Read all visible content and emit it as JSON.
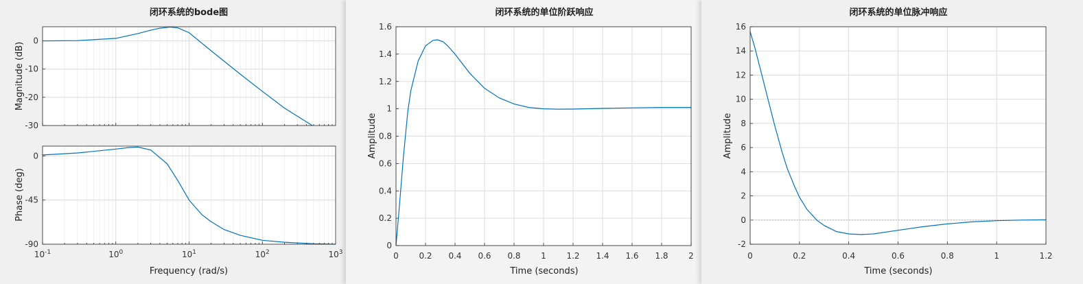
{
  "chart_data": [
    {
      "type": "line",
      "title": "闭环系统的bode图",
      "xlabel": "Frequency (rad/s)",
      "xscale": "log",
      "xlim": [
        0.1,
        1000
      ],
      "xticks": [
        "10^-1",
        "10^0",
        "10^1",
        "10^2",
        "10^3"
      ],
      "grid": true,
      "subplots": [
        {
          "name": "magnitude",
          "ylabel": "Magnitude (dB)",
          "ylim": [
            -30,
            5
          ],
          "yticks": [
            "0",
            "-10",
            "-20",
            "-30"
          ],
          "series": [
            {
              "color": "#0072BD",
              "x": [
                0.1,
                0.3,
                1,
                2,
                3,
                4,
                5.5,
                7,
                10,
                20,
                50,
                100,
                200,
                480
              ],
              "y": [
                0,
                0.1,
                0.9,
                2.6,
                3.8,
                4.5,
                4.9,
                4.6,
                2.9,
                -3.5,
                -11.8,
                -17.9,
                -23.8,
                -30
              ]
            }
          ]
        },
        {
          "name": "phase",
          "ylabel": "Phase (deg)",
          "ylim": [
            -90,
            10
          ],
          "yticks": [
            "0",
            "-45",
            "-90"
          ],
          "series": [
            {
              "color": "#0072BD",
              "x": [
                0.1,
                0.3,
                1,
                1.5,
                2,
                3,
                5,
                7,
                10,
                15,
                20,
                30,
                50,
                100,
                200,
                500,
                1000
              ],
              "y": [
                1,
                3,
                7,
                8.5,
                9,
                6,
                -8,
                -25,
                -45,
                -60,
                -67,
                -75,
                -81,
                -86,
                -88,
                -89.5,
                -90
              ]
            }
          ]
        }
      ]
    },
    {
      "type": "line",
      "title": "闭环系统的单位阶跃响应",
      "xlabel": "Time (seconds)",
      "ylabel": "Amplitude",
      "xlim": [
        0,
        2
      ],
      "ylim": [
        0,
        1.6
      ],
      "xticks": [
        "0",
        "0.2",
        "0.4",
        "0.6",
        "0.8",
        "1",
        "1.2",
        "1.4",
        "1.6",
        "1.8",
        "2"
      ],
      "yticks": [
        "0",
        "0.2",
        "0.4",
        "0.6",
        "0.8",
        "1",
        "1.2",
        "1.4",
        "1.6"
      ],
      "grid": true,
      "series": [
        {
          "color": "#0072BD",
          "x": [
            0,
            0.02,
            0.05,
            0.08,
            0.1,
            0.15,
            0.2,
            0.25,
            0.28,
            0.32,
            0.35,
            0.4,
            0.5,
            0.6,
            0.7,
            0.8,
            0.9,
            1.0,
            1.1,
            1.2,
            1.4,
            1.6,
            1.8,
            2.0
          ],
          "y": [
            0,
            0.25,
            0.65,
            0.98,
            1.13,
            1.35,
            1.46,
            1.5,
            1.505,
            1.49,
            1.46,
            1.4,
            1.26,
            1.15,
            1.08,
            1.035,
            1.01,
            1.0,
            0.997,
            0.998,
            1.003,
            1.007,
            1.01,
            1.01
          ]
        }
      ]
    },
    {
      "type": "line",
      "title": "闭环系统的单位脉冲响应",
      "xlabel": "Time (seconds)",
      "ylabel": "Amplitude",
      "xlim": [
        0,
        1.2
      ],
      "ylim": [
        -2,
        16
      ],
      "xticks": [
        "0",
        "0.2",
        "0.4",
        "0.6",
        "0.8",
        "1",
        "1.2"
      ],
      "yticks": [
        "-2",
        "0",
        "2",
        "4",
        "6",
        "8",
        "10",
        "12",
        "14",
        "16"
      ],
      "grid": true,
      "series": [
        {
          "color": "#0072BD",
          "x": [
            0,
            0.02,
            0.05,
            0.08,
            0.1,
            0.13,
            0.15,
            0.18,
            0.2,
            0.23,
            0.27,
            0.3,
            0.35,
            0.4,
            0.45,
            0.5,
            0.6,
            0.7,
            0.8,
            0.9,
            1.0,
            1.1,
            1.2
          ],
          "y": [
            15.6,
            14.2,
            11.8,
            9.4,
            7.8,
            5.6,
            4.3,
            2.8,
            1.9,
            0.9,
            0.0,
            -0.45,
            -0.95,
            -1.15,
            -1.2,
            -1.15,
            -0.85,
            -0.55,
            -0.32,
            -0.15,
            -0.05,
            0.0,
            0.02
          ]
        },
        {
          "name": "",
          "color": "#b0b0b0",
          "style": "dotted",
          "x": [
            0,
            1.2
          ],
          "y": [
            0,
            0
          ]
        }
      ]
    }
  ]
}
